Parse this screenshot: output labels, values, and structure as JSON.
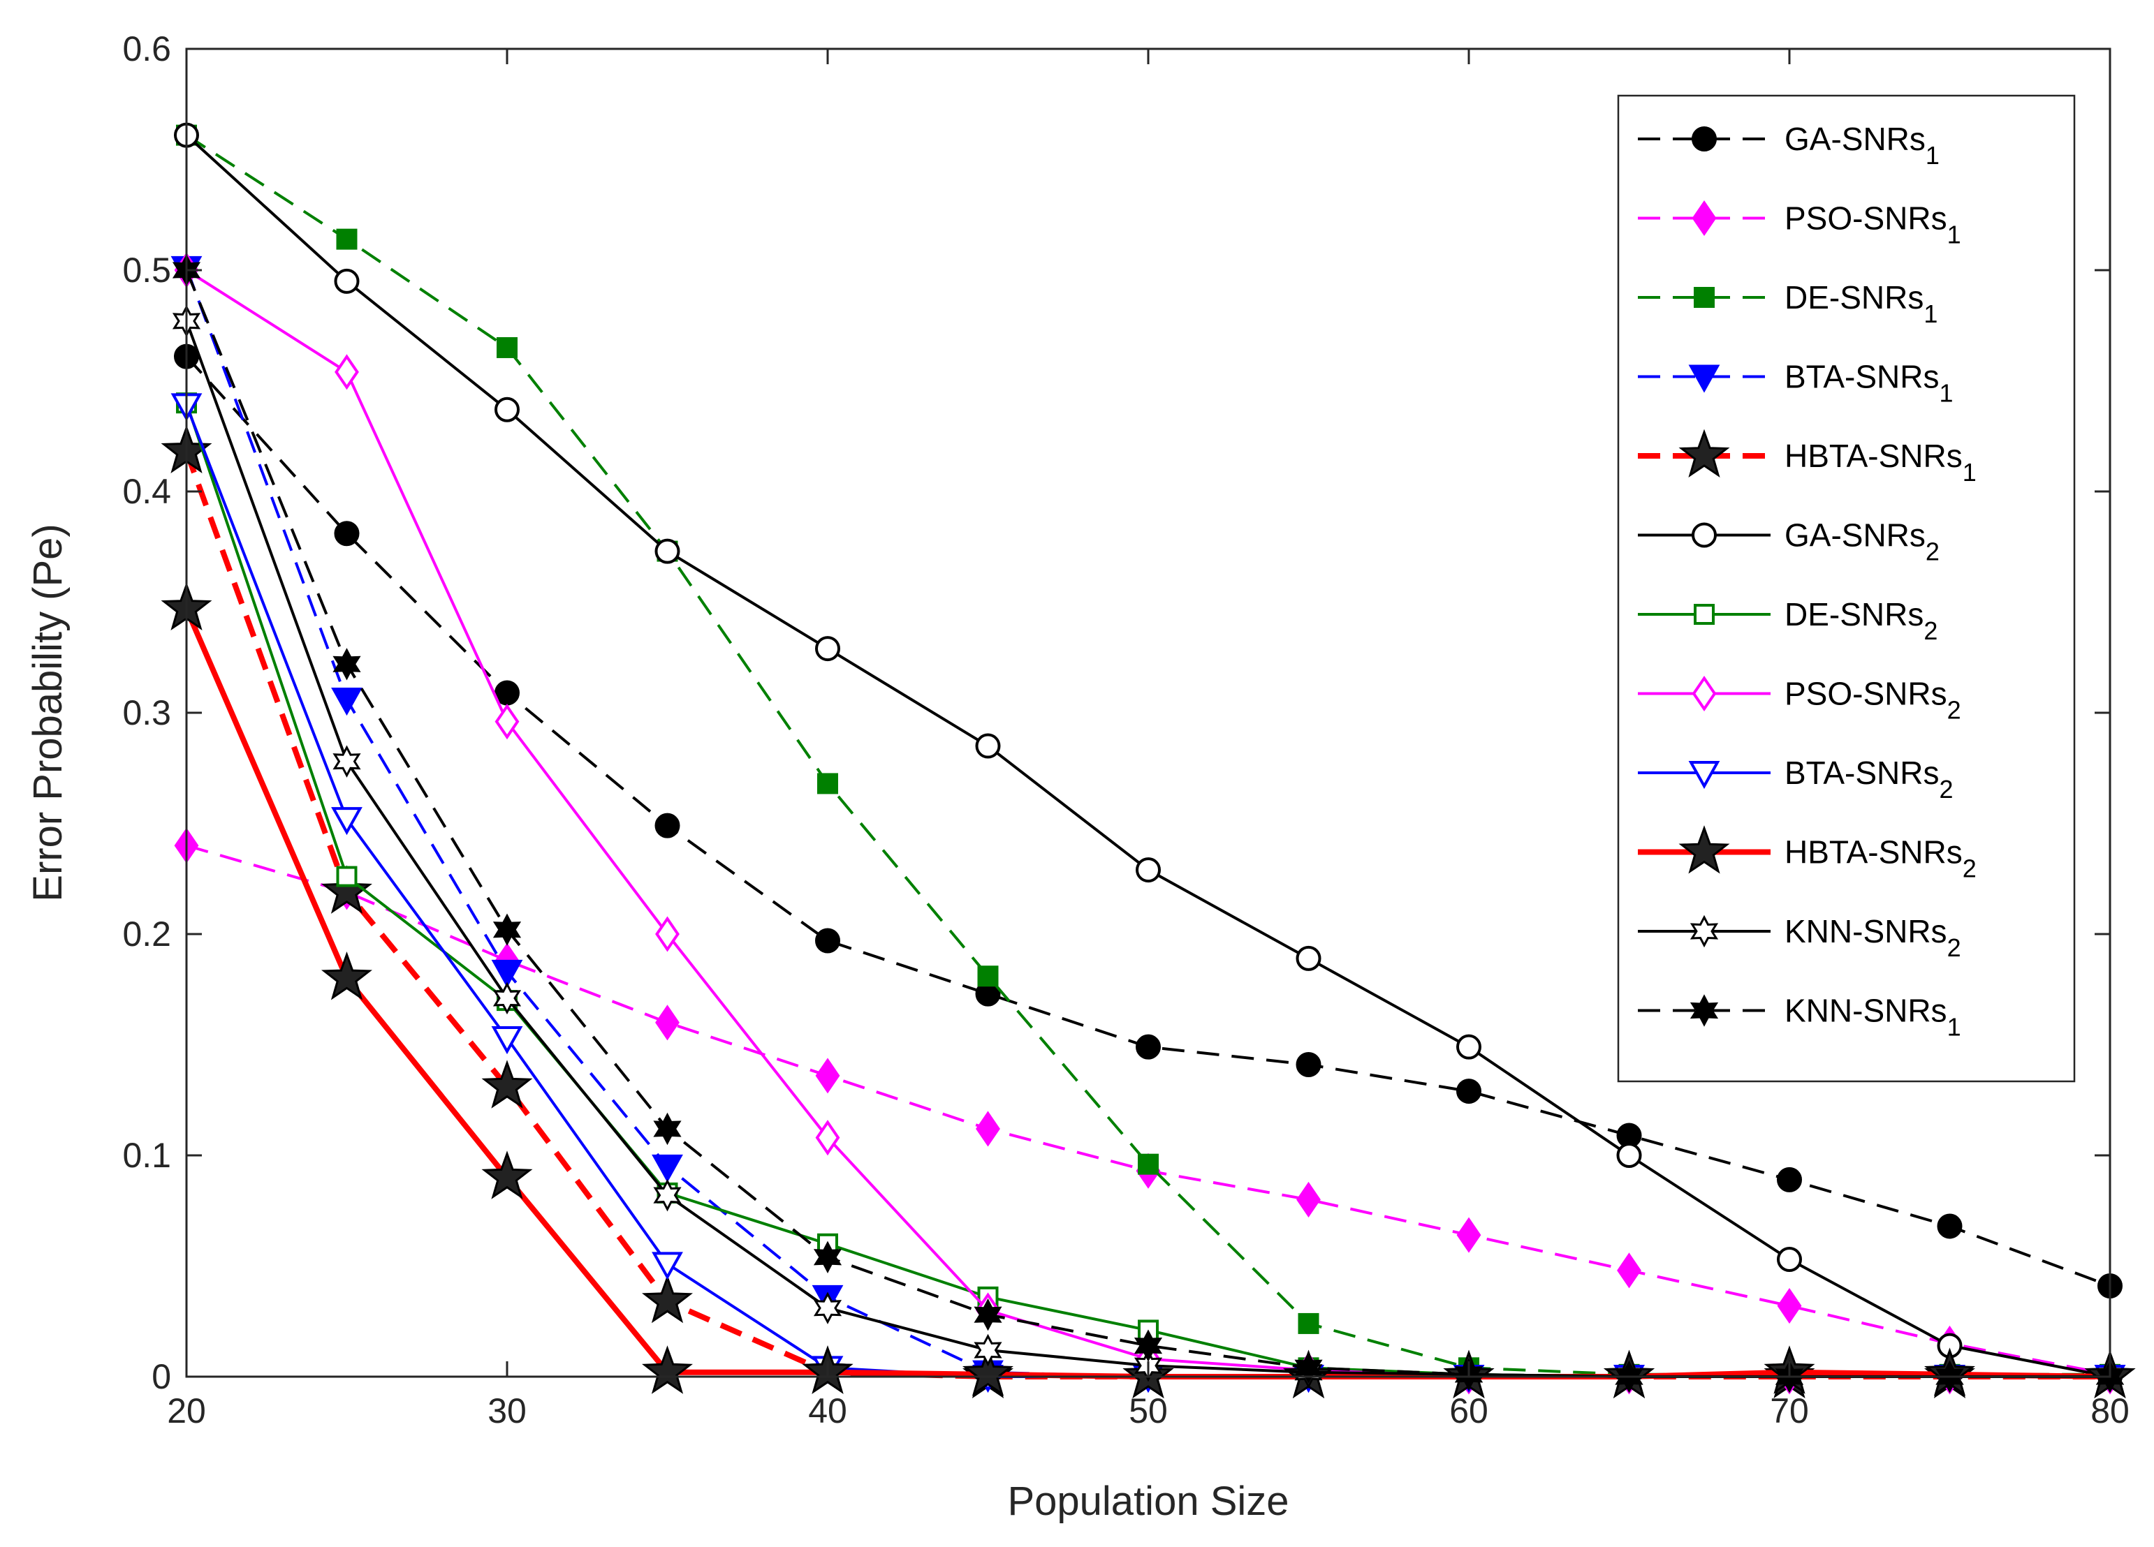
{
  "chart_data": {
    "type": "line",
    "title": "",
    "xlabel": "Population Size",
    "ylabel": "Error Probability (Pe)",
    "xlim": [
      20,
      80
    ],
    "ylim": [
      0,
      0.6
    ],
    "xticks": [
      20,
      30,
      40,
      50,
      60,
      70,
      80
    ],
    "yticks": [
      0,
      0.1,
      0.2,
      0.3,
      0.4,
      0.5,
      0.6
    ],
    "xtick_labels": [
      "20",
      "30",
      "40",
      "50",
      "60",
      "70",
      "80"
    ],
    "ytick_labels": [
      "0",
      "0.1",
      "0.2",
      "0.3",
      "0.4",
      "0.5",
      "0.6"
    ],
    "grid": false,
    "legend_position": "top-right",
    "x": [
      20,
      25,
      30,
      35,
      40,
      45,
      50,
      55,
      60,
      65,
      70,
      75,
      80
    ],
    "series": [
      {
        "name": "GA-SNRs",
        "sub": "1",
        "color": "#000000",
        "dash": "dashed",
        "marker": "circle",
        "fill": "filled",
        "width": 2,
        "values": [
          0.461,
          0.381,
          0.309,
          0.249,
          0.197,
          0.173,
          0.149,
          0.141,
          0.129,
          0.109,
          0.089,
          0.068,
          0.041
        ]
      },
      {
        "name": "PSO-SNRs",
        "sub": "1",
        "color": "#ff00ff",
        "dash": "dashed",
        "marker": "diamond",
        "fill": "filled",
        "width": 2,
        "values": [
          0.24,
          0.219,
          0.188,
          0.16,
          0.136,
          0.112,
          0.093,
          0.08,
          0.064,
          0.048,
          0.032,
          0.015,
          0.001
        ]
      },
      {
        "name": "DE-SNRs",
        "sub": "1",
        "color": "#008000",
        "dash": "dashed",
        "marker": "square",
        "fill": "filled",
        "width": 2,
        "values": [
          0.561,
          0.514,
          0.465,
          0.373,
          0.268,
          0.181,
          0.096,
          0.024,
          0.004,
          0.001,
          0.001,
          0.001,
          0.001
        ]
      },
      {
        "name": "BTA-SNRs",
        "sub": "1",
        "color": "#0000ff",
        "dash": "dashed",
        "marker": "triangle-down",
        "fill": "filled",
        "width": 2,
        "values": [
          0.501,
          0.306,
          0.183,
          0.095,
          0.036,
          0.002,
          0.0,
          0.0,
          0.0,
          0.0,
          0.0,
          0.0,
          0.0
        ]
      },
      {
        "name": "HBTA-SNRs",
        "sub": "1",
        "color": "#ff0000",
        "dash": "dashed",
        "marker": "star5",
        "fill": "black",
        "width": 4,
        "values": [
          0.418,
          0.219,
          0.131,
          0.034,
          0.002,
          0.0,
          0.0,
          0.0,
          0.0,
          0.0,
          0.0,
          0.0,
          0.0
        ]
      },
      {
        "name": "GA-SNRs",
        "sub": "2",
        "color": "#000000",
        "dash": "solid",
        "marker": "circle",
        "fill": "open",
        "width": 2,
        "values": [
          0.561,
          0.495,
          0.437,
          0.373,
          0.329,
          0.285,
          0.229,
          0.189,
          0.149,
          0.1,
          0.053,
          0.014,
          0.0
        ]
      },
      {
        "name": "DE-SNRs",
        "sub": "2",
        "color": "#008000",
        "dash": "solid",
        "marker": "square",
        "fill": "open",
        "width": 2,
        "values": [
          0.44,
          0.226,
          0.17,
          0.083,
          0.06,
          0.036,
          0.021,
          0.004,
          0.001,
          0.0,
          0.0,
          0.0,
          0.0
        ]
      },
      {
        "name": "PSO-SNRs",
        "sub": "2",
        "color": "#ff00ff",
        "dash": "solid",
        "marker": "diamond",
        "fill": "open",
        "width": 2,
        "values": [
          0.5,
          0.454,
          0.296,
          0.2,
          0.108,
          0.03,
          0.008,
          0.003,
          0.0,
          0.0,
          0.0,
          0.0,
          0.0
        ]
      },
      {
        "name": "BTA-SNRs",
        "sub": "2",
        "color": "#0000ff",
        "dash": "solid",
        "marker": "triangle-down",
        "fill": "open",
        "width": 2,
        "values": [
          0.439,
          0.252,
          0.153,
          0.051,
          0.004,
          0.0,
          0.0,
          0.0,
          0.0,
          0.0,
          0.0,
          0.0,
          0.0
        ]
      },
      {
        "name": "HBTA-SNRs",
        "sub": "2",
        "color": "#ff0000",
        "dash": "solid",
        "marker": "star5",
        "fill": "black",
        "width": 4,
        "values": [
          0.347,
          0.18,
          0.09,
          0.002,
          0.002,
          0.001,
          0.0,
          0.0,
          0.0,
          0.0,
          0.002,
          0.001,
          0.0
        ]
      },
      {
        "name": "KNN-SNRs",
        "sub": "2",
        "color": "#000000",
        "dash": "solid",
        "marker": "hexagram",
        "fill": "open",
        "width": 2,
        "values": [
          0.477,
          0.278,
          0.171,
          0.082,
          0.031,
          0.012,
          0.005,
          0.002,
          0.001,
          0.0,
          0.0,
          0.0,
          0.0
        ]
      },
      {
        "name": "KNN-SNRs",
        "sub": "1",
        "color": "#000000",
        "dash": "dashed",
        "marker": "hexagram",
        "fill": "filled",
        "width": 2,
        "values": [
          0.5,
          0.322,
          0.202,
          0.112,
          0.054,
          0.028,
          0.014,
          0.004,
          0.001,
          0.0,
          0.0,
          0.0,
          0.0
        ]
      }
    ]
  }
}
